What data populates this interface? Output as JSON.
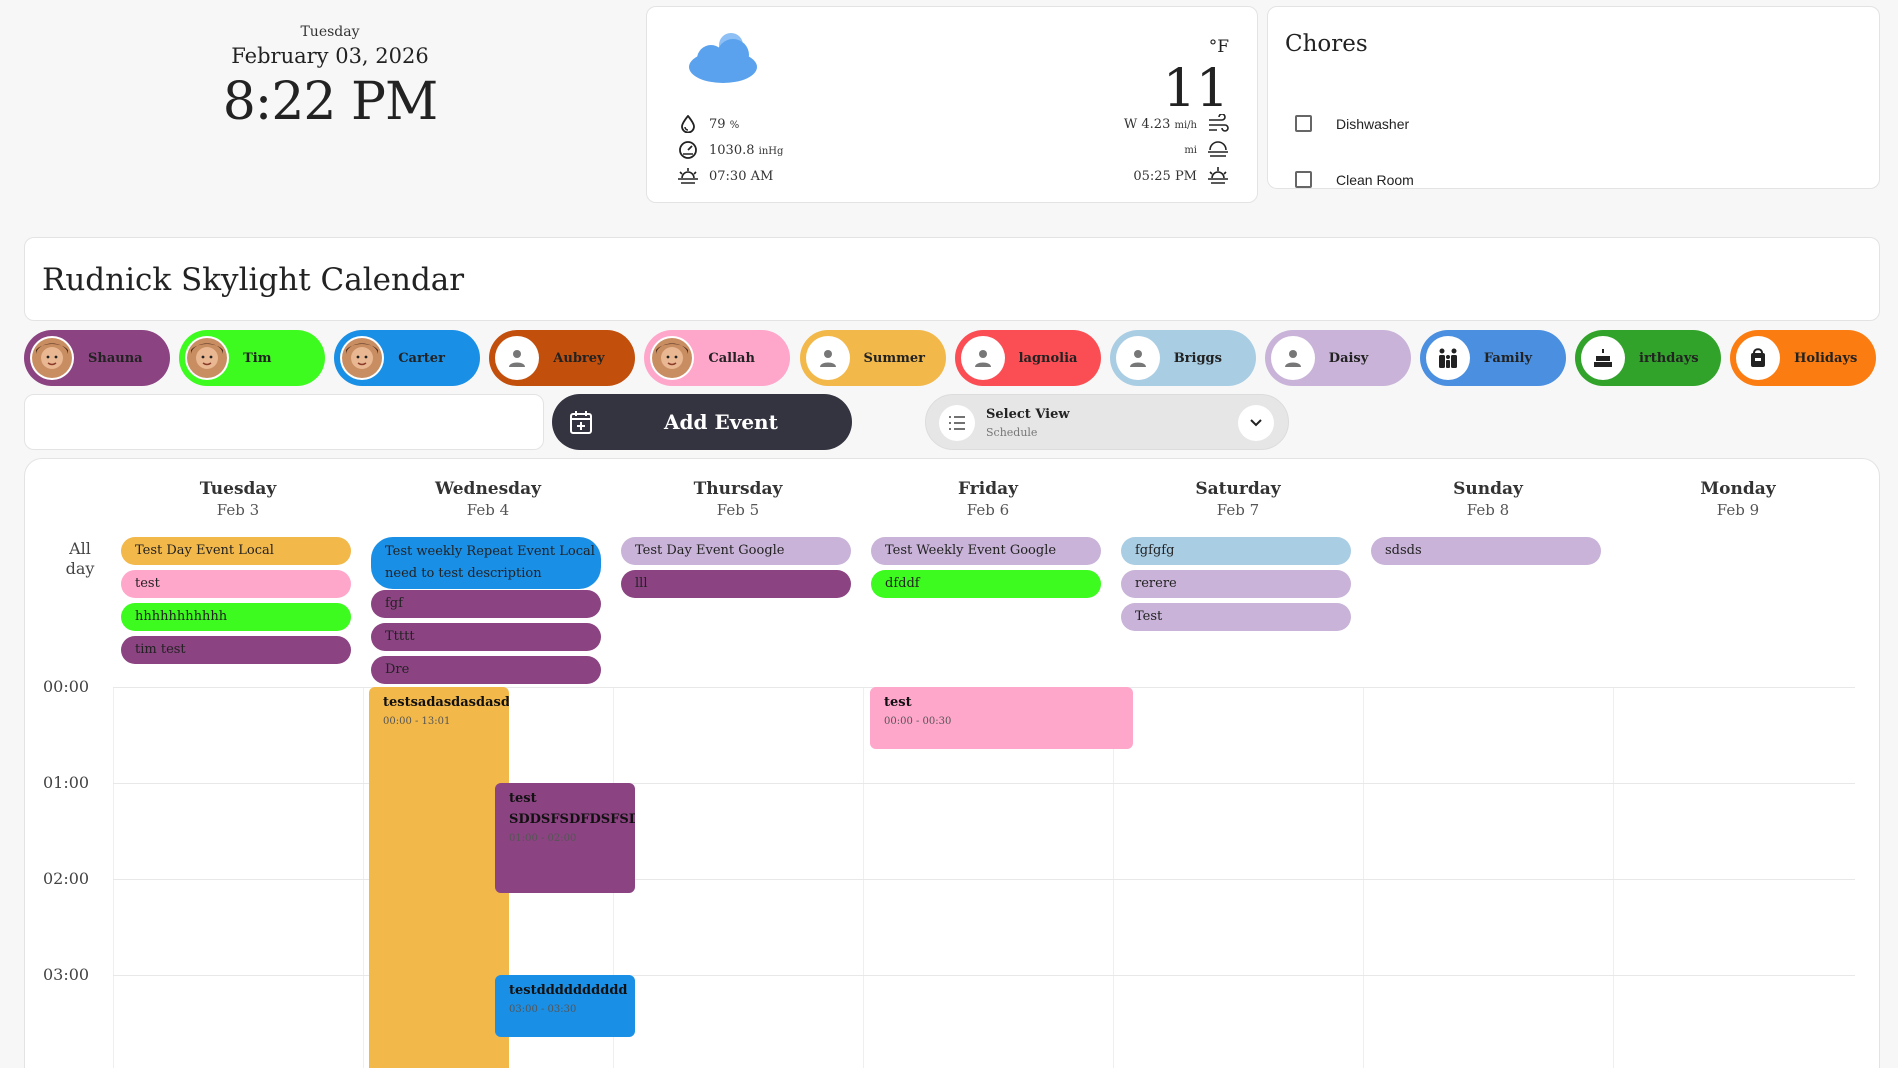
{
  "clock": {
    "day_of_week": "Tuesday",
    "date": "February 03, 2026",
    "time": "8:22 PM"
  },
  "weather": {
    "icon": "cloud-icon",
    "humidity": "79",
    "humidity_unit": "%",
    "pressure": "1030.8",
    "pressure_unit": "inHg",
    "sunrise": "07:30 AM",
    "temperature": "11",
    "temp_unit": "°F",
    "wind": "W 4.23",
    "wind_unit": "mi/h",
    "visibility_unit": "mi",
    "sunset": "05:25 PM"
  },
  "chores": {
    "title": "Chores",
    "items": [
      {
        "label": "Dishwasher",
        "checked": false
      },
      {
        "label": "Clean Room",
        "checked": false
      }
    ]
  },
  "calendar_title": "Rudnick Skylight Calendar",
  "people": [
    {
      "name": "Shauna",
      "color": "#8b4382",
      "avatar": "photo"
    },
    {
      "name": "Tim",
      "color": "#3dfb1f",
      "avatar": "photo"
    },
    {
      "name": "Carter",
      "color": "#1a8fe6",
      "avatar": "photo"
    },
    {
      "name": "Aubrey",
      "color": "#c24f0c",
      "avatar": "person-icon"
    },
    {
      "name": "Callah",
      "color": "#ffa6cb",
      "avatar": "photo"
    },
    {
      "name": "Summer",
      "color": "#f2b84a",
      "avatar": "person-icon"
    },
    {
      "name": "lagnolia",
      "color": "#fa4e54",
      "avatar": "person-icon"
    },
    {
      "name": "Briggs",
      "color": "#a9cde3",
      "avatar": "person-icon"
    },
    {
      "name": "Daisy",
      "color": "#c9b3d8",
      "avatar": "person-icon"
    },
    {
      "name": "Family",
      "color": "#4a8fe0",
      "avatar": "family-icon"
    },
    {
      "name": "irthdays",
      "color": "#32a32a",
      "avatar": "cake-icon"
    },
    {
      "name": "Holidays",
      "color": "#fb7d12",
      "avatar": "bag-icon"
    }
  ],
  "controls": {
    "add_event_label": "Add Event",
    "view_select_label": "Select View",
    "view_select_value": "Schedule"
  },
  "days": [
    {
      "name": "Tuesday",
      "date": "Feb 3"
    },
    {
      "name": "Wednesday",
      "date": "Feb 4"
    },
    {
      "name": "Thursday",
      "date": "Feb 5"
    },
    {
      "name": "Friday",
      "date": "Feb 6"
    },
    {
      "name": "Saturday",
      "date": "Feb 7"
    },
    {
      "name": "Sunday",
      "date": "Feb 8"
    },
    {
      "name": "Monday",
      "date": "Feb 9"
    }
  ],
  "allday_label": "All day",
  "allday_events": [
    {
      "day": 0,
      "title": "Test Day Event Local",
      "color": "#f2b84a"
    },
    {
      "day": 0,
      "title": "test",
      "color": "#ffa6cb"
    },
    {
      "day": 0,
      "title": "hhhhhhhhhhh",
      "color": "#3dfb1f"
    },
    {
      "day": 0,
      "title": "tim test",
      "color": "#8b4382"
    },
    {
      "day": 1,
      "title": "Test weekly Repeat Event Local",
      "subtitle": "need to test description",
      "color": "#1a8fe6"
    },
    {
      "day": 1,
      "title": "fgf",
      "color": "#8b4382"
    },
    {
      "day": 1,
      "title": "Ttttt",
      "color": "#8b4382"
    },
    {
      "day": 1,
      "title": "Dre",
      "color": "#8b4382"
    },
    {
      "day": 2,
      "title": "Test Day Event Google",
      "color": "#c9b3d8"
    },
    {
      "day": 2,
      "title": "lll",
      "color": "#8b4382"
    },
    {
      "day": 3,
      "title": "Test Weekly Event Google",
      "color": "#c9b3d8"
    },
    {
      "day": 3,
      "title": "dfddf",
      "color": "#3dfb1f"
    },
    {
      "day": 4,
      "title": "fgfgfg",
      "color": "#a9cde3"
    },
    {
      "day": 4,
      "title": "rerere",
      "color": "#c9b3d8"
    },
    {
      "day": 4,
      "title": "Test",
      "color": "#c9b3d8"
    },
    {
      "day": 5,
      "title": "sdsds",
      "color": "#c9b3d8"
    }
  ],
  "hours": [
    "00:00",
    "01:00",
    "02:00",
    "03:00"
  ],
  "timed_events": [
    {
      "title": "testsadasdasdasd",
      "time": "00:00 - 13:01",
      "color": "#f2b84a"
    },
    {
      "title": "test",
      "time": "00:00 - 00:30",
      "color": "#ffa6cb"
    },
    {
      "title": "test",
      "subtitle": "SDDSFSDFDSFSD",
      "time": "01:00 - 02:00",
      "color": "#8b4382"
    },
    {
      "title": "testdddddddddd",
      "time": "03:00 - 03:30",
      "color": "#1a8fe6"
    }
  ]
}
